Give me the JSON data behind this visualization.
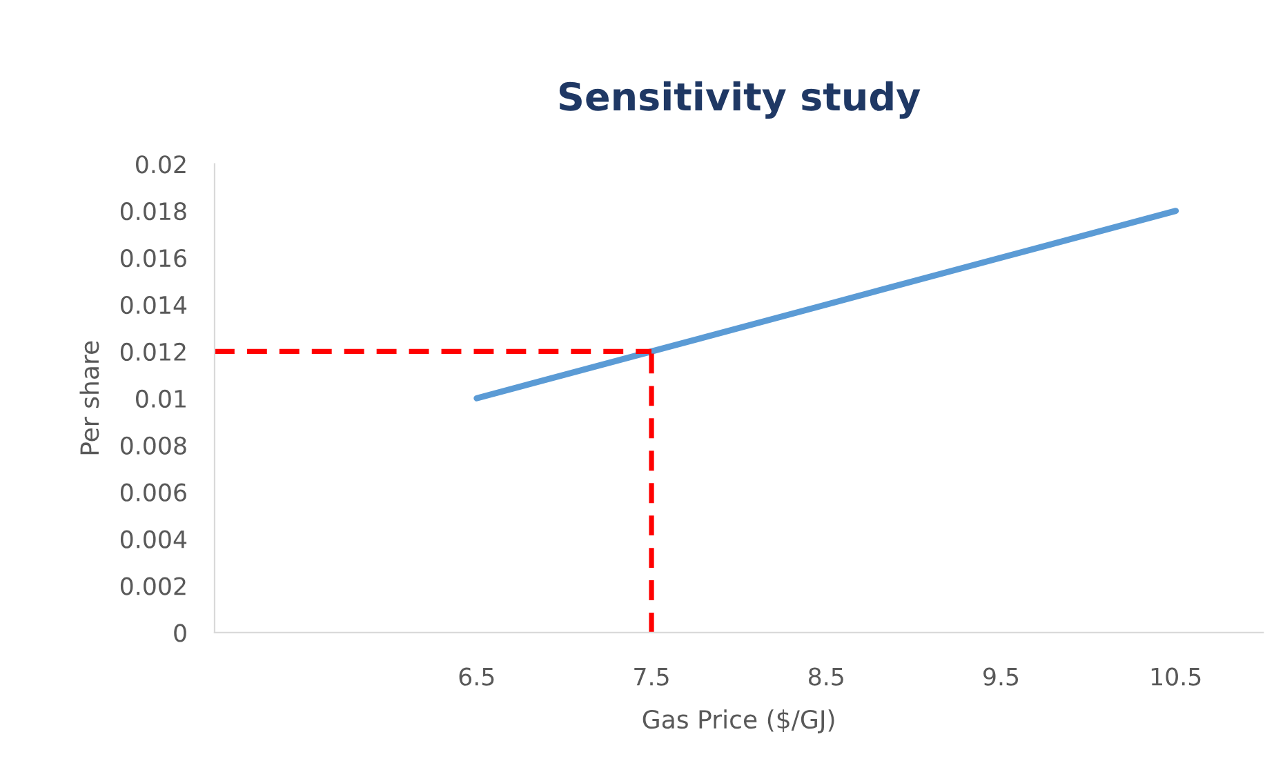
{
  "chart_data": {
    "type": "line",
    "title": "Sensitivity study",
    "xlabel": "Gas Price ($/GJ)",
    "ylabel": "Per share",
    "xlim": [
      5,
      11
    ],
    "xticks": [
      6.5,
      7.5,
      8.5,
      9.5,
      10.5
    ],
    "ylim": [
      0,
      0.02
    ],
    "yticks": [
      0,
      0.002,
      0.004,
      0.006,
      0.008,
      0.01,
      0.012,
      0.014,
      0.016,
      0.018,
      0.02
    ],
    "marker": "none",
    "series": [
      {
        "x": [
          6.5,
          7.5,
          8.5,
          9.5,
          10.5
        ],
        "values": [
          0.01,
          0.012,
          0.014,
          0.016,
          0.018
        ],
        "color": "#5b9bd5",
        "line_style": "solid"
      },
      {
        "x": [
          5,
          7.5
        ],
        "values": [
          0.012,
          0.012
        ],
        "color": "#ff0000",
        "line_style": "dashed"
      },
      {
        "x": [
          7.5,
          7.5
        ],
        "values": [
          0,
          0.012
        ],
        "color": "#ff0000",
        "line_style": "dashed"
      }
    ]
  }
}
